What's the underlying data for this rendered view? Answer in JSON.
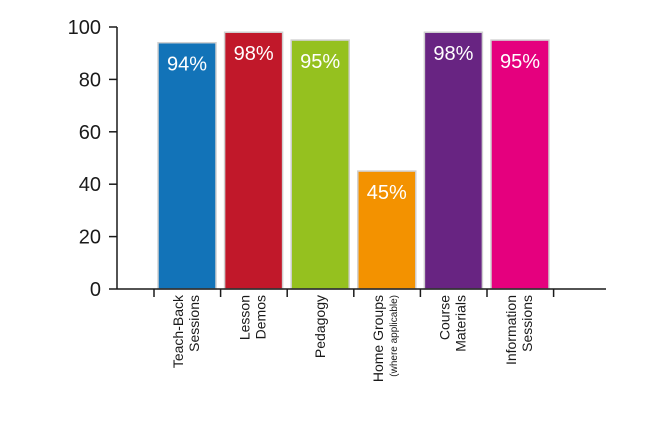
{
  "chart_data": {
    "type": "bar",
    "categories": [
      [
        "Teach-Back",
        "Sessions"
      ],
      [
        "Lesson",
        "Demos"
      ],
      [
        "Pedagogy"
      ],
      [
        "Home Groups",
        "(where applicable)"
      ],
      [
        "Course",
        "Materials"
      ],
      [
        "Information",
        "Sessions"
      ]
    ],
    "values": [
      94,
      98,
      95,
      45,
      98,
      95
    ],
    "data_labels": [
      "94%",
      "98%",
      "95%",
      "45%",
      "98%",
      "95%"
    ],
    "colors": [
      "#1273b8",
      "#c1182a",
      "#95c11f",
      "#f39200",
      "#682482",
      "#e5007e"
    ],
    "ylim": [
      0,
      100
    ],
    "yticks": [
      0,
      20,
      40,
      60,
      80,
      100
    ],
    "title": "",
    "xlabel": "",
    "ylabel": "",
    "grid": false,
    "legend": "none"
  }
}
